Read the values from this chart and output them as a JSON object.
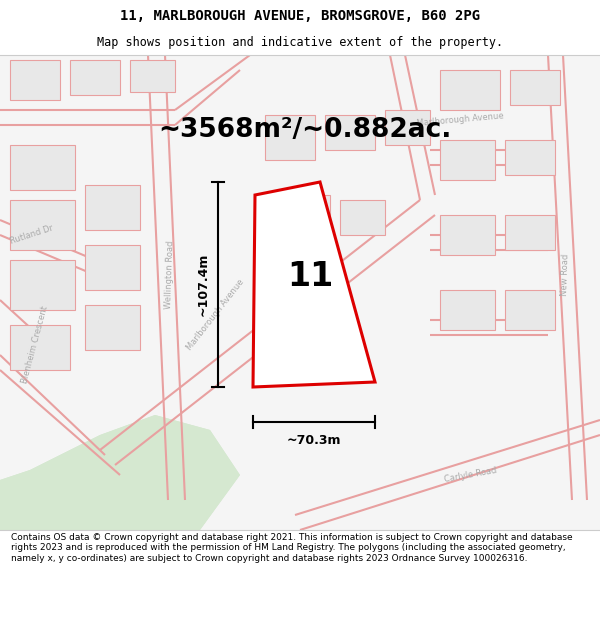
{
  "title_line1": "11, MARLBOROUGH AVENUE, BROMSGROVE, B60 2PG",
  "title_line2": "Map shows position and indicative extent of the property.",
  "area_text": "~3568m²/~0.882ac.",
  "label_number": "11",
  "dim_vertical": "~107.4m",
  "dim_horizontal": "~70.3m",
  "footer_text": "Contains OS data © Crown copyright and database right 2021. This information is subject to Crown copyright and database rights 2023 and is reproduced with the permission of HM Land Registry. The polygons (including the associated geometry, namely x, y co-ordinates) are subject to Crown copyright and database rights 2023 Ordnance Survey 100026316.",
  "bg_color": "#ffffff",
  "map_bg": "#f0f0f0",
  "plot_fill": "#ffffff",
  "plot_edge": "#dd0000",
  "street_color": "#e8a0a0",
  "street_lw": 1.5,
  "building_fill": "#e8e8e8",
  "building_edge": "#e8a0a0",
  "green_fill": "#d5e8d0",
  "label_color": "#aaaaaa",
  "title_fontsize": 10,
  "subtitle_fontsize": 8.5,
  "area_fontsize": 19,
  "number_fontsize": 24,
  "dim_fontsize": 9,
  "street_label_fontsize": 6
}
